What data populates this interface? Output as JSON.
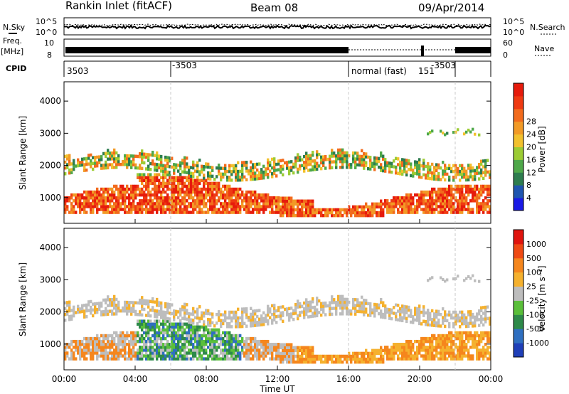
{
  "header": {
    "title": "Rankin Inlet (fitACF)",
    "beam": "Beam 08",
    "date": "09/Apr/2014"
  },
  "status_panels": {
    "nsky_label": "N.Sky",
    "nsky_ticks": [
      "10^5",
      "10^0"
    ],
    "nsearch_label": "N.Search",
    "nsearch_ticks": [
      "10^5",
      "10^0"
    ],
    "freq_label_1": "Freq.",
    "freq_label_2": "[MHz]",
    "freq_ticks": [
      "10",
      "8"
    ],
    "nave_label": "Nave",
    "nave_ticks": [
      "60",
      "0"
    ],
    "cpid_label": "CPID",
    "cpid_segments": [
      "3503",
      "-3503",
      "normal (fast)",
      "151",
      "-3503"
    ]
  },
  "chart_data": [
    {
      "type": "heatmap",
      "name": "power",
      "ylabel": "Slant Range [km]",
      "yticks": [
        "1000",
        "2000",
        "3000",
        "4000"
      ],
      "ylim": [
        200,
        4600
      ],
      "x_hours_range": [
        0,
        24
      ],
      "colorbar_label": "Power [dB]",
      "colorbar_ticks": [
        "4",
        "8",
        "12",
        "16",
        "20",
        "24",
        "28"
      ],
      "colorbar_colors": [
        "#1a1ae6",
        "#1f55b0",
        "#2e7d4f",
        "#4fa84a",
        "#9ccc34",
        "#f2c12e",
        "#f29a26",
        "#f26b1d",
        "#ef3a12",
        "#e61b0c"
      ]
    },
    {
      "type": "heatmap",
      "name": "velocity",
      "ylabel": "Slant Range [km]",
      "yticks": [
        "1000",
        "2000",
        "3000",
        "4000"
      ],
      "ylim": [
        200,
        4600
      ],
      "x_hours_range": [
        0,
        24
      ],
      "colorbar_label": "Velocity [m s⁻¹]",
      "colorbar_ticks": [
        "1000",
        "500",
        "100",
        "25",
        "-25",
        "-100",
        "-500",
        "-1000"
      ],
      "colorbar_colors": [
        "#1f3fb8",
        "#2f6fc0",
        "#2e8a4a",
        "#5abf3a",
        "#bdbdbd",
        "#f5b12e",
        "#f5861d",
        "#ef4a14",
        "#e0140e"
      ]
    }
  ],
  "x_axis": {
    "ticks": [
      "00:00",
      "04:00",
      "08:00",
      "12:00",
      "16:00",
      "20:00",
      "00:00"
    ],
    "label": "Time UT"
  }
}
